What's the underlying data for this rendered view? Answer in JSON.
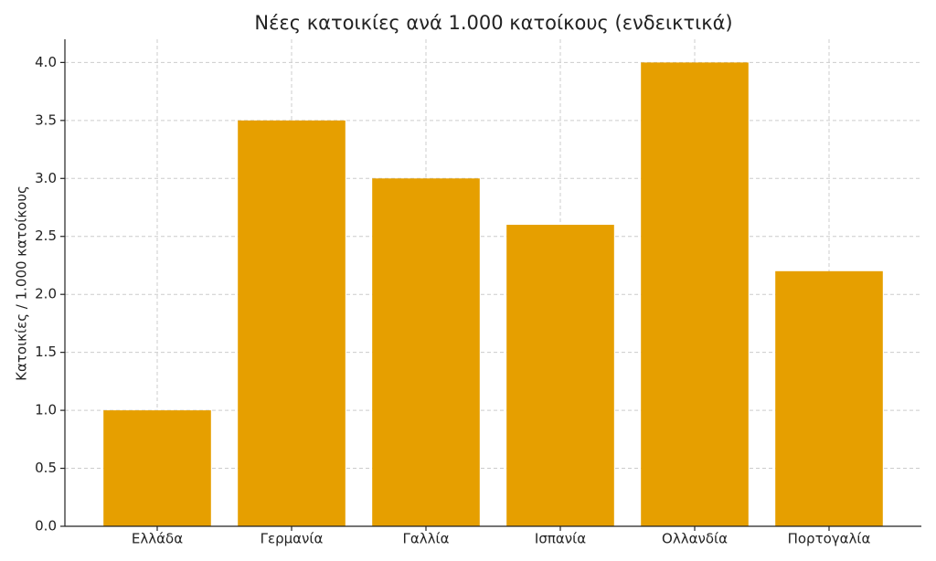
{
  "chart_data": {
    "type": "bar",
    "title": "Νέες κατοικίες ανά 1.000 κατοίκους (ενδεικτικά)",
    "y_label": "Κατοικίες / 1.000 κατοίκους",
    "categories": [
      "Ελλάδα",
      "Γερμανία",
      "Γαλλία",
      "Ισπανία",
      "Ολλανδία",
      "Πορτογαλία"
    ],
    "values": [
      1.0,
      3.5,
      3.0,
      2.6,
      4.0,
      2.2
    ],
    "color": "#e69f00",
    "ylim": [
      0,
      4.2
    ],
    "yticks": [
      {
        "value": 0,
        "label": "0.0"
      },
      0.5,
      {
        "value": 1,
        "label": "1.0"
      },
      1.5,
      {
        "value": 2,
        "label": "2.0"
      },
      2.5,
      {
        "value": 3,
        "label": "3.0"
      },
      3.5,
      {
        "value": 4,
        "label": "4.0"
      }
    ],
    "grid": true
  }
}
